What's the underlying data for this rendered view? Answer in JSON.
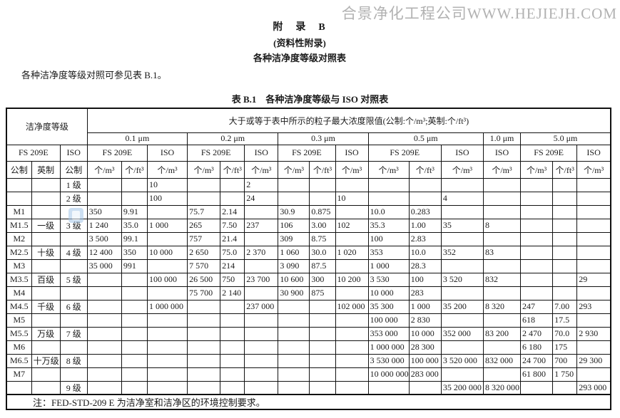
{
  "watermark": "合景净化工程公司WWW.HEJIEJH.COM",
  "page": {
    "appendix_title": "附　录　B",
    "appendix_subtitle": "(资料性附录)",
    "appendix_heading": "各种洁净度等级对照表",
    "intro": "各种洁净度等级对照可参见表 B.1。",
    "table_caption": "表 B.1　各种洁净度等级与 ISO 对照表"
  },
  "table": {
    "header": {
      "class_group": "洁净度等级",
      "limit_group": "大于或等于表中所示的粒子最大浓度限值(公制:个/m³;英制:个/ft³)",
      "sizes": [
        "0.1 μm",
        "0.2 μm",
        "0.3 μm",
        "0.5 μm",
        "1.0 μm",
        "5.0 μm"
      ],
      "fs": "FS 209E",
      "iso": "ISO",
      "metric": "公制",
      "english": "英制",
      "unit_m3": "个/m³",
      "unit_ft3": "个/ft³"
    },
    "rows": [
      [
        "",
        "",
        "1 级",
        "",
        "",
        "10",
        "",
        "",
        "2",
        "",
        "",
        "",
        "",
        "",
        "",
        "",
        "",
        "",
        ""
      ],
      [
        "",
        "",
        "2 级",
        "",
        "",
        "100",
        "",
        "",
        "24",
        "",
        "",
        "10",
        "",
        "",
        "4",
        "",
        "",
        "",
        ""
      ],
      [
        "M1",
        "",
        "",
        "350",
        "9.91",
        "",
        "75.7",
        "2.14",
        "",
        "30.9",
        "0.875",
        "",
        "10.0",
        "0.283",
        "",
        "",
        "",
        "",
        ""
      ],
      [
        "M1.5",
        "一级",
        "3 级",
        "1 240",
        "35.0",
        "1 000",
        "265",
        "7.50",
        "237",
        "106",
        "3.00",
        "102",
        "35.3",
        "1.00",
        "35",
        "8",
        "",
        "",
        ""
      ],
      [
        "M2",
        "",
        "",
        "3 500",
        "99.1",
        "",
        "757",
        "21.4",
        "",
        "309",
        "8.75",
        "",
        "100",
        "2.83",
        "",
        "",
        "",
        "",
        ""
      ],
      [
        "M2.5",
        "十级",
        "4 级",
        "12 400",
        "350",
        "10 000",
        "2 650",
        "75.0",
        "2 370",
        "1 060",
        "30.0",
        "1 020",
        "353",
        "10.0",
        "352",
        "83",
        "",
        "",
        ""
      ],
      [
        "M3",
        "",
        "",
        "35 000",
        "991",
        "",
        "7 570",
        "214",
        "",
        "3 090",
        "87.5",
        "",
        "1 000",
        "28.3",
        "",
        "",
        "",
        "",
        ""
      ],
      [
        "M3.5",
        "百级",
        "5 级",
        "",
        "",
        "100 000",
        "26 500",
        "750",
        "23 700",
        "10 600",
        "300",
        "10 200",
        "3 530",
        "100",
        "3 520",
        "832",
        "",
        "",
        "29"
      ],
      [
        "M4",
        "",
        "",
        "",
        "",
        "",
        "75 700",
        "2 140",
        "",
        "30 900",
        "875",
        "",
        "10 000",
        "283",
        "",
        "",
        "",
        "",
        ""
      ],
      [
        "M4.5",
        "千级",
        "6 级",
        "",
        "",
        "1 000 000",
        "",
        "",
        "237 000",
        "",
        "",
        "102 000",
        "35 300",
        "1 000",
        "35 200",
        "8 320",
        "247",
        "7.00",
        "293"
      ],
      [
        "M5",
        "",
        "",
        "",
        "",
        "",
        "",
        "",
        "",
        "",
        "",
        "",
        "100 000",
        "2 830",
        "",
        "",
        "618",
        "17.5",
        ""
      ],
      [
        "M5.5",
        "万级",
        "7 级",
        "",
        "",
        "",
        "",
        "",
        "",
        "",
        "",
        "",
        "353 000",
        "10 000",
        "352 000",
        "83 200",
        "2 470",
        "70.0",
        "2 930"
      ],
      [
        "M6",
        "",
        "",
        "",
        "",
        "",
        "",
        "",
        "",
        "",
        "",
        "",
        "1 000 000",
        "28 300",
        "",
        "",
        "6 180",
        "175",
        ""
      ],
      [
        "M6.5",
        "十万级",
        "8 级",
        "",
        "",
        "",
        "",
        "",
        "",
        "",
        "",
        "",
        "3 530 000",
        "100 000",
        "3 520 000",
        "832 000",
        "24 700",
        "700",
        "29 300"
      ],
      [
        "M7",
        "",
        "",
        "",
        "",
        "",
        "",
        "",
        "",
        "",
        "",
        "",
        "10 000 000",
        "283 000",
        "",
        "",
        "61 800",
        "1 750",
        ""
      ],
      [
        "",
        "",
        "9 级",
        "",
        "",
        "",
        "",
        "",
        "",
        "",
        "",
        "",
        "",
        "",
        "35 200 000",
        "8 320 000",
        "",
        "",
        "293 000"
      ]
    ],
    "note": "注：FED-STD-209 E 为洁净室和洁净区的环境控制要求。"
  }
}
